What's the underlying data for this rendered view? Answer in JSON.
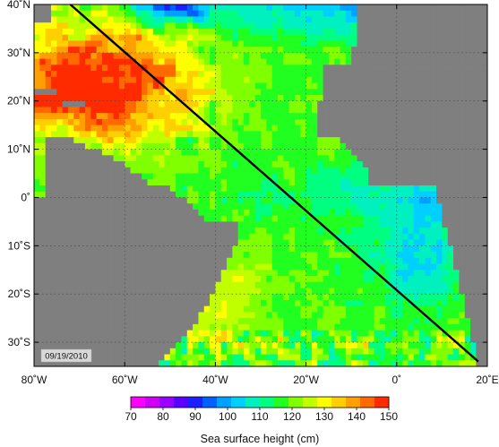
{
  "map": {
    "title": "Sea surface height (cm)",
    "date": "09/19/2010",
    "lat_labels": [
      "40˚N",
      "30˚N",
      "20˚N",
      "10˚N",
      "0˚",
      "10˚S",
      "20˚S",
      "30˚S"
    ],
    "lon_labels": [
      "80˚W",
      "60˚W",
      "40˚W",
      "20˚W",
      "0˚",
      "20˚E"
    ],
    "lat_range": [
      -35,
      40
    ],
    "lon_range": [
      -80,
      20
    ],
    "track": {
      "from": [
        -72,
        40
      ],
      "to": [
        18,
        -34
      ]
    }
  },
  "colorbar": {
    "ticks": [
      "70",
      "80",
      "90",
      "100",
      "110",
      "120",
      "130",
      "140",
      "150"
    ],
    "range": [
      70,
      150
    ],
    "colors": [
      "#ff00ff",
      "#d000f5",
      "#9a00ff",
      "#5a00ff",
      "#1e1eff",
      "#0060ff",
      "#00a0ff",
      "#00d0ff",
      "#00f0c0",
      "#00ff80",
      "#20ff20",
      "#80ff00",
      "#c0ff00",
      "#ffff00",
      "#ffd000",
      "#ffa000",
      "#ff6a00",
      "#ff2a00"
    ]
  },
  "land": {
    "color": "#7f7f7f"
  }
}
